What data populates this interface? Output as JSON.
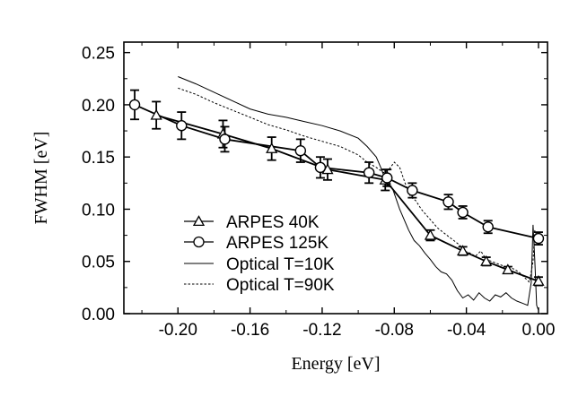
{
  "chart_data": {
    "type": "line",
    "xlabel": "Energy [eV]",
    "ylabel": "FWHM [eV]",
    "xlim": [
      -0.23,
      0.005
    ],
    "ylim": [
      0.0,
      0.26
    ],
    "x_ticks": [
      -0.2,
      -0.16,
      -0.12,
      -0.08,
      -0.04,
      0.0
    ],
    "x_tick_labels": [
      "-0.20",
      "-0.16",
      "-0.12",
      "-0.08",
      "-0.04",
      "0.00"
    ],
    "y_ticks": [
      0.0,
      0.05,
      0.1,
      0.15,
      0.2,
      0.25
    ],
    "y_tick_labels": [
      "0.00",
      "0.05",
      "0.10",
      "0.15",
      "0.20",
      "0.25"
    ],
    "legend_position": "lower-left",
    "series": [
      {
        "name": "ARPES 40K",
        "marker": "triangle",
        "line": "solid",
        "points": [
          {
            "x": -0.212,
            "y": 0.19,
            "err": 0.013
          },
          {
            "x": -0.175,
            "y": 0.172,
            "err": 0.013
          },
          {
            "x": -0.148,
            "y": 0.158,
            "err": 0.011
          },
          {
            "x": -0.117,
            "y": 0.138,
            "err": 0.01
          },
          {
            "x": -0.085,
            "y": 0.128,
            "err": 0.01
          },
          {
            "x": -0.06,
            "y": 0.075,
            "err": 0.005
          },
          {
            "x": -0.042,
            "y": 0.06,
            "err": 0.004
          },
          {
            "x": -0.029,
            "y": 0.05,
            "err": 0.004
          },
          {
            "x": -0.017,
            "y": 0.042,
            "err": 0.003
          },
          {
            "x": 0.0,
            "y": 0.031,
            "err": 0.004
          }
        ]
      },
      {
        "name": "ARPES 125K",
        "marker": "circle",
        "line": "solid",
        "points": [
          {
            "x": -0.224,
            "y": 0.2,
            "err": 0.014
          },
          {
            "x": -0.198,
            "y": 0.18,
            "err": 0.013
          },
          {
            "x": -0.174,
            "y": 0.167,
            "err": 0.012
          },
          {
            "x": -0.132,
            "y": 0.156,
            "err": 0.011
          },
          {
            "x": -0.121,
            "y": 0.14,
            "err": 0.01
          },
          {
            "x": -0.094,
            "y": 0.135,
            "err": 0.01
          },
          {
            "x": -0.084,
            "y": 0.13,
            "err": 0.008
          },
          {
            "x": -0.07,
            "y": 0.118,
            "err": 0.007
          },
          {
            "x": -0.05,
            "y": 0.107,
            "err": 0.007
          },
          {
            "x": -0.042,
            "y": 0.097,
            "err": 0.006
          },
          {
            "x": -0.028,
            "y": 0.083,
            "err": 0.006
          },
          {
            "x": 0.0,
            "y": 0.072,
            "err": 0.006
          }
        ]
      },
      {
        "name": "Optical T=10K",
        "marker": "none",
        "line": "solid-thin",
        "x": [
          -0.2,
          -0.19,
          -0.18,
          -0.17,
          -0.16,
          -0.15,
          -0.14,
          -0.13,
          -0.12,
          -0.11,
          -0.1,
          -0.095,
          -0.09,
          -0.087,
          -0.085,
          -0.083,
          -0.081,
          -0.079,
          -0.077,
          -0.075,
          -0.072,
          -0.069,
          -0.066,
          -0.063,
          -0.06,
          -0.057,
          -0.054,
          -0.051,
          -0.048,
          -0.045,
          -0.042,
          -0.039,
          -0.036,
          -0.033,
          -0.03,
          -0.027,
          -0.024,
          -0.021,
          -0.018,
          -0.015,
          -0.012,
          -0.009,
          -0.006,
          -0.004,
          -0.003,
          -0.002,
          -0.001,
          0.0
        ],
        "y": [
          0.227,
          0.22,
          0.212,
          0.204,
          0.196,
          0.191,
          0.188,
          0.184,
          0.18,
          0.175,
          0.168,
          0.16,
          0.15,
          0.138,
          0.128,
          0.122,
          0.12,
          0.11,
          0.1,
          0.092,
          0.08,
          0.07,
          0.065,
          0.058,
          0.052,
          0.045,
          0.04,
          0.038,
          0.032,
          0.022,
          0.015,
          0.018,
          0.013,
          0.02,
          0.015,
          0.012,
          0.018,
          0.016,
          0.02,
          0.015,
          0.012,
          0.01,
          0.008,
          0.03,
          0.085,
          0.05,
          0.008,
          0.003
        ]
      },
      {
        "name": "Optical T=90K",
        "marker": "none",
        "line": "dotted",
        "x": [
          -0.2,
          -0.19,
          -0.18,
          -0.17,
          -0.16,
          -0.15,
          -0.14,
          -0.13,
          -0.12,
          -0.11,
          -0.1,
          -0.095,
          -0.09,
          -0.086,
          -0.083,
          -0.08,
          -0.077,
          -0.074,
          -0.071,
          -0.068,
          -0.065,
          -0.062,
          -0.059,
          -0.056,
          -0.053,
          -0.05,
          -0.047,
          -0.044,
          -0.041,
          -0.038,
          -0.035,
          -0.032,
          -0.029,
          -0.026,
          -0.023,
          -0.02,
          -0.017,
          -0.014,
          -0.011,
          -0.008,
          -0.005,
          -0.003,
          -0.002,
          -0.001,
          0.0
        ],
        "y": [
          0.216,
          0.21,
          0.202,
          0.195,
          0.188,
          0.181,
          0.176,
          0.17,
          0.165,
          0.16,
          0.152,
          0.145,
          0.14,
          0.135,
          0.138,
          0.145,
          0.14,
          0.125,
          0.112,
          0.108,
          0.1,
          0.094,
          0.088,
          0.082,
          0.078,
          0.074,
          0.07,
          0.066,
          0.06,
          0.058,
          0.055,
          0.06,
          0.052,
          0.05,
          0.048,
          0.046,
          0.044,
          0.043,
          0.04,
          0.035,
          0.03,
          0.05,
          0.08,
          0.075,
          0.07
        ]
      }
    ]
  }
}
